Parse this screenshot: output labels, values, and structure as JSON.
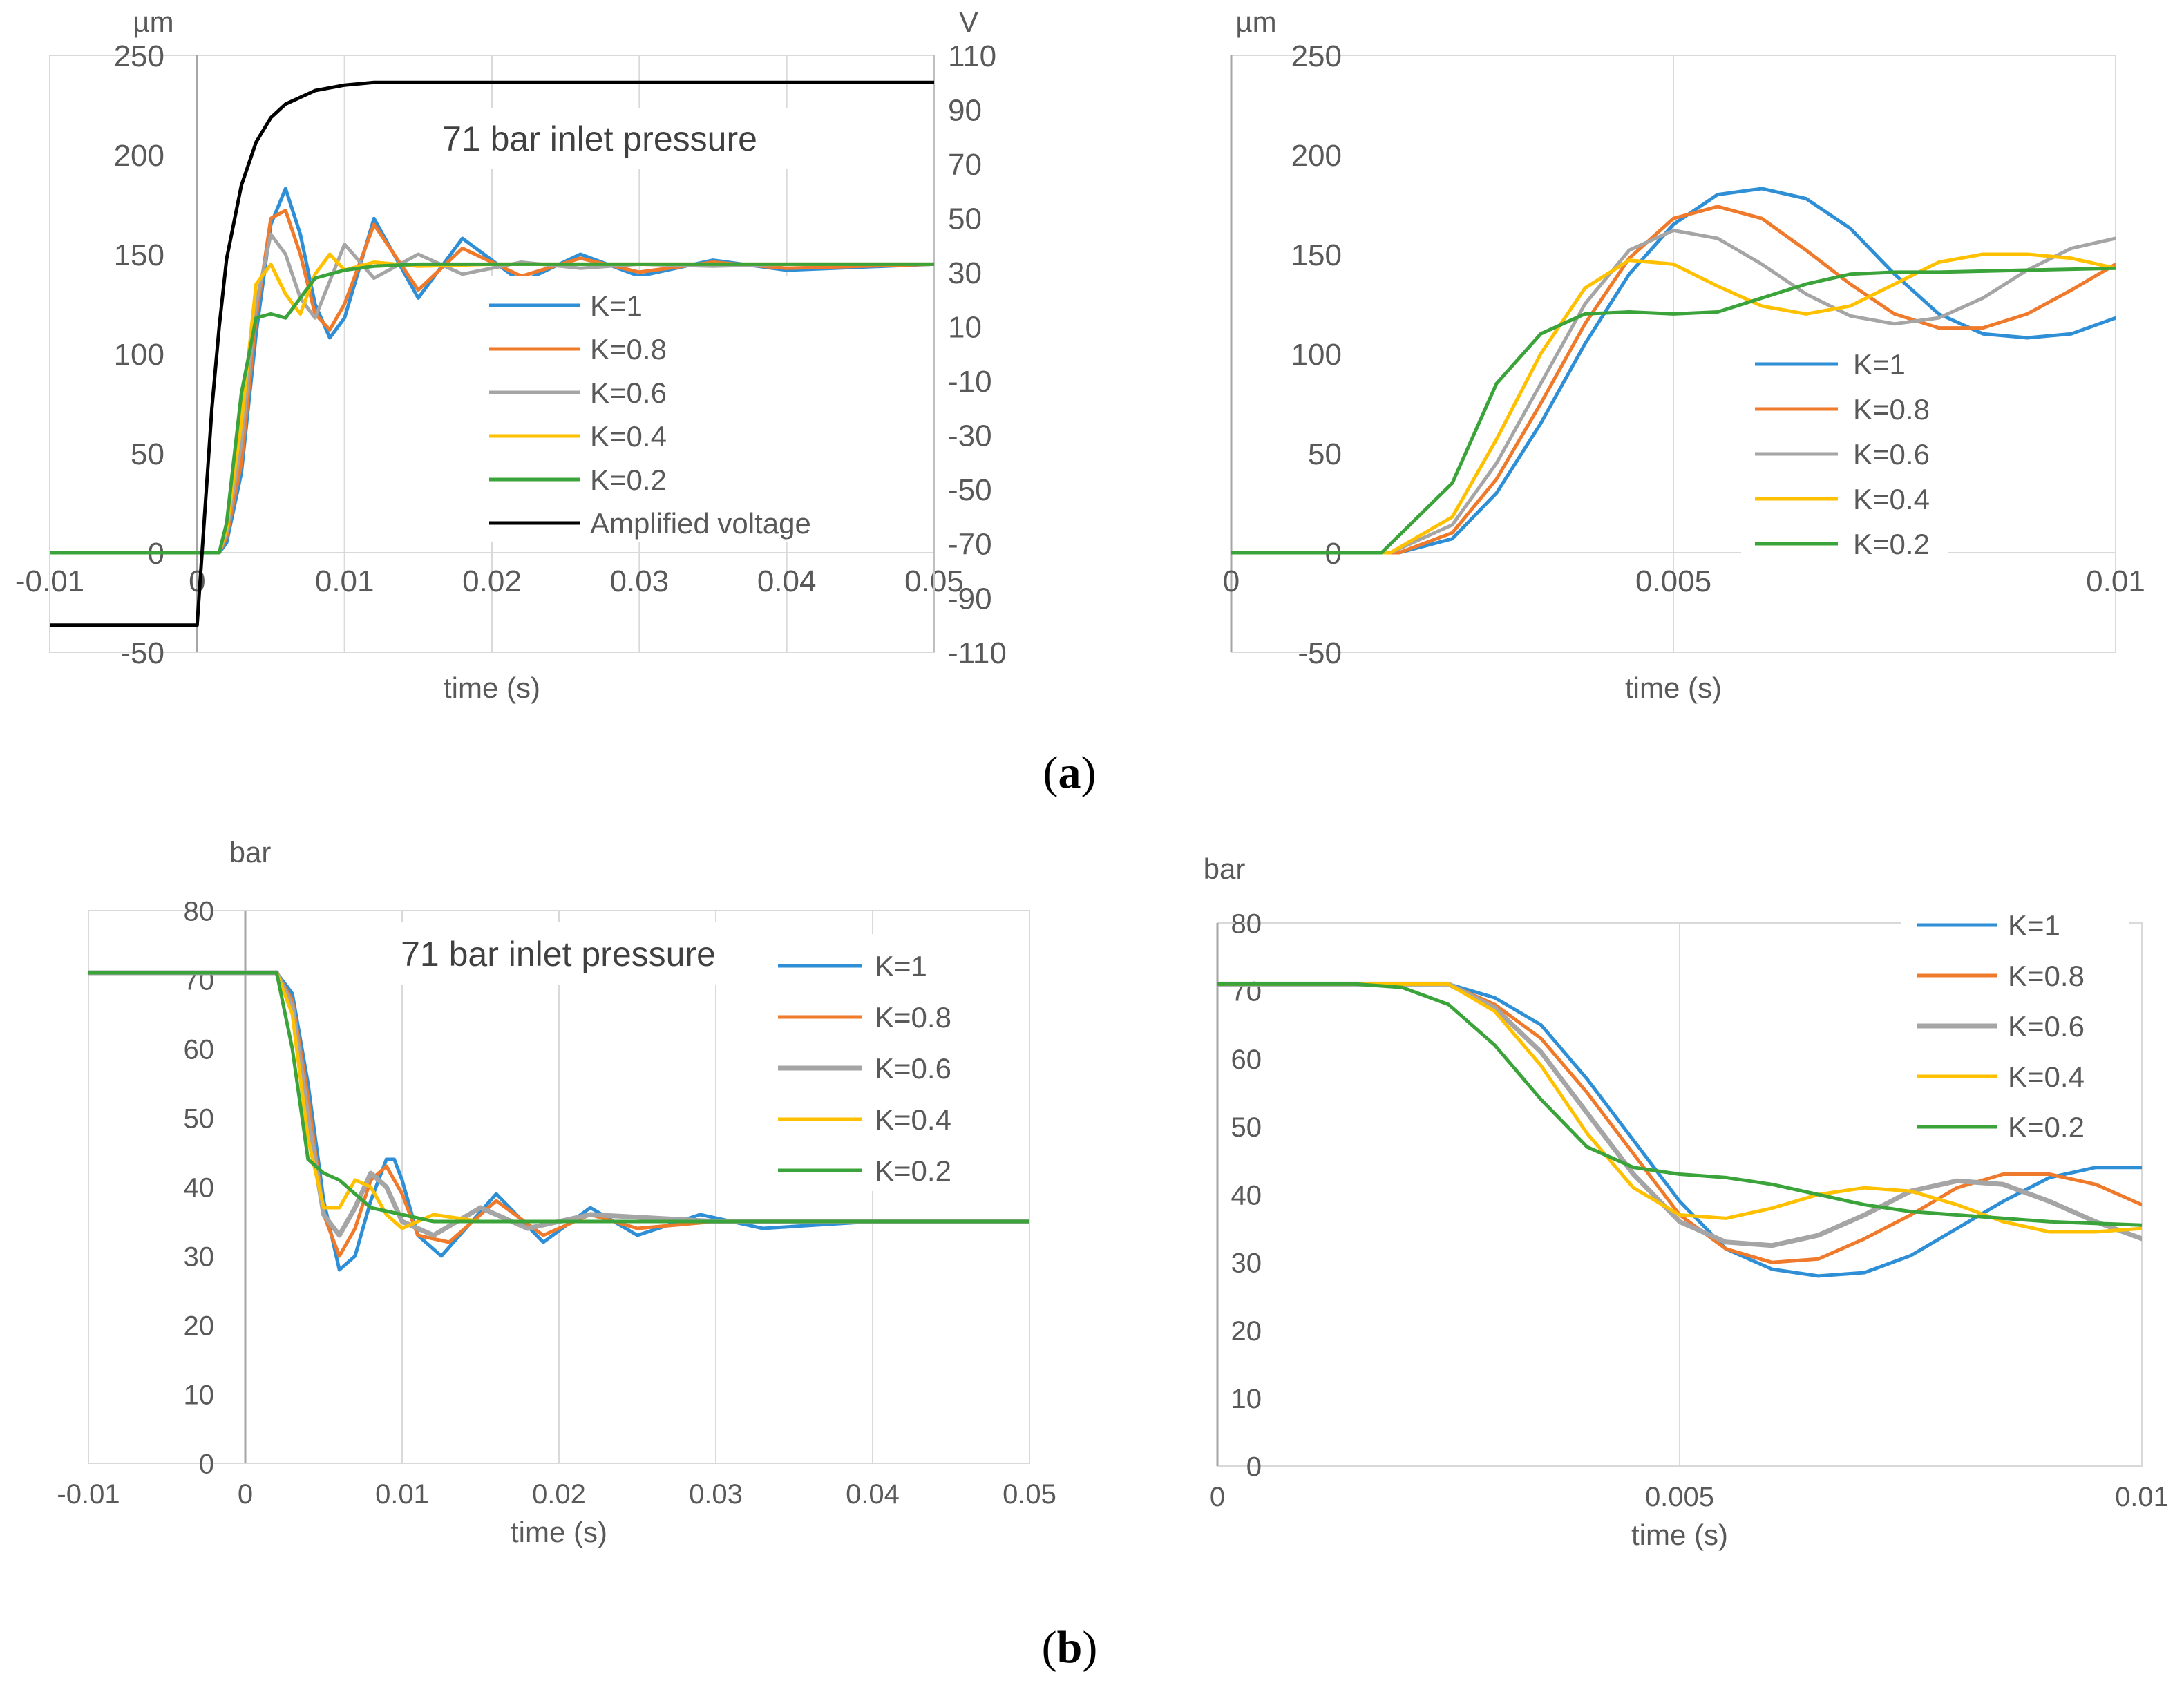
{
  "figure": {
    "caption_a": "a",
    "caption_b": "b"
  },
  "chart_data": [
    {
      "id": "a-left",
      "type": "line",
      "title": "71 bar inlet pressure",
      "xlabel": "time (s)",
      "ylabel": "µm",
      "y2label": "V",
      "xlim": [
        -0.01,
        0.05
      ],
      "ylim": [
        -50,
        250
      ],
      "y2lim": [
        -110,
        110
      ],
      "xticks": [
        "-0.01",
        "0",
        "0.01",
        "0.02",
        "0.03",
        "0.04",
        "0.05"
      ],
      "yticks": [
        "-50",
        "0",
        "50",
        "100",
        "150",
        "200",
        "250"
      ],
      "y2ticks": [
        "-110",
        "-90",
        "-70",
        "-50",
        "-30",
        "-10",
        "10",
        "30",
        "50",
        "70",
        "90",
        "110"
      ],
      "grid": "vertical",
      "legend": "center-right",
      "series": [
        {
          "name": "K=1",
          "color": "#2E8FD6",
          "axis": "left",
          "x": [
            -0.01,
            0,
            0.0015,
            0.002,
            0.003,
            0.004,
            0.005,
            0.006,
            0.007,
            0.008,
            0.009,
            0.01,
            0.012,
            0.015,
            0.018,
            0.022,
            0.026,
            0.03,
            0.035,
            0.04,
            0.05
          ],
          "y": [
            0,
            0,
            0,
            5,
            40,
            110,
            165,
            183,
            160,
            125,
            108,
            118,
            168,
            128,
            158,
            136,
            150,
            139,
            147,
            142,
            145
          ]
        },
        {
          "name": "K=0.8",
          "color": "#F07A2B",
          "axis": "left",
          "x": [
            -0.01,
            0,
            0.0015,
            0.002,
            0.003,
            0.004,
            0.005,
            0.006,
            0.007,
            0.008,
            0.009,
            0.01,
            0.012,
            0.015,
            0.018,
            0.022,
            0.026,
            0.03,
            0.035,
            0.04,
            0.05
          ],
          "y": [
            0,
            0,
            0,
            8,
            45,
            118,
            168,
            172,
            150,
            120,
            112,
            125,
            165,
            132,
            153,
            139,
            148,
            141,
            146,
            143,
            145
          ]
        },
        {
          "name": "K=0.6",
          "color": "#A5A5A5",
          "axis": "left",
          "x": [
            -0.01,
            0,
            0.0015,
            0.002,
            0.003,
            0.004,
            0.005,
            0.006,
            0.007,
            0.008,
            0.01,
            0.012,
            0.015,
            0.018,
            0.022,
            0.026,
            0.03,
            0.035,
            0.04,
            0.05
          ],
          "y": [
            0,
            0,
            0,
            10,
            55,
            125,
            160,
            150,
            128,
            118,
            155,
            138,
            150,
            140,
            146,
            143,
            145,
            144,
            145,
            145
          ]
        },
        {
          "name": "K=0.4",
          "color": "#FFC000",
          "axis": "left",
          "x": [
            -0.01,
            0,
            0.0015,
            0.002,
            0.003,
            0.004,
            0.005,
            0.006,
            0.007,
            0.008,
            0.009,
            0.01,
            0.012,
            0.015,
            0.02,
            0.03,
            0.05
          ],
          "y": [
            0,
            0,
            0,
            12,
            65,
            135,
            145,
            130,
            120,
            140,
            150,
            142,
            146,
            144,
            145,
            145,
            145
          ]
        },
        {
          "name": "K=0.2",
          "color": "#3AA33A",
          "axis": "left",
          "x": [
            -0.01,
            0,
            0.0015,
            0.002,
            0.003,
            0.004,
            0.005,
            0.006,
            0.007,
            0.008,
            0.009,
            0.01,
            0.012,
            0.015,
            0.02,
            0.03,
            0.05
          ],
          "y": [
            0,
            0,
            0,
            15,
            80,
            118,
            120,
            118,
            128,
            138,
            140,
            142,
            144,
            145,
            145,
            145,
            145
          ]
        },
        {
          "name": "Amplified voltage",
          "color": "#000000",
          "axis": "right",
          "x": [
            -0.01,
            -0.0001,
            0,
            0.0005,
            0.001,
            0.0015,
            0.002,
            0.003,
            0.004,
            0.005,
            0.006,
            0.008,
            0.01,
            0.012,
            0.015,
            0.02,
            0.05
          ],
          "y": [
            -100,
            -100,
            -100,
            -60,
            -20,
            10,
            35,
            62,
            78,
            87,
            92,
            97,
            99,
            100,
            100,
            100,
            100
          ]
        }
      ]
    },
    {
      "id": "a-right",
      "type": "line",
      "title": "",
      "xlabel": "time (s)",
      "ylabel": "µm",
      "xlim": [
        0,
        0.01
      ],
      "ylim": [
        -50,
        250
      ],
      "xticks": [
        "0",
        "0.005",
        "0.01"
      ],
      "yticks": [
        "-50",
        "0",
        "50",
        "100",
        "150",
        "200",
        "250"
      ],
      "grid": "vertical",
      "legend": "center-right",
      "series": [
        {
          "name": "K=1",
          "color": "#2E8FD6",
          "x": [
            0,
            0.001,
            0.0019,
            0.0025,
            0.003,
            0.0035,
            0.004,
            0.0045,
            0.005,
            0.0055,
            0.006,
            0.0065,
            0.007,
            0.0075,
            0.008,
            0.0085,
            0.009,
            0.0095,
            0.01
          ],
          "y": [
            0,
            0,
            0,
            7,
            30,
            65,
            105,
            140,
            165,
            180,
            183,
            178,
            163,
            140,
            120,
            110,
            108,
            110,
            118
          ]
        },
        {
          "name": "K=0.8",
          "color": "#F07A2B",
          "x": [
            0,
            0.001,
            0.0019,
            0.0025,
            0.003,
            0.0035,
            0.004,
            0.0045,
            0.005,
            0.0055,
            0.006,
            0.0065,
            0.007,
            0.0075,
            0.008,
            0.0085,
            0.009,
            0.0095,
            0.01
          ],
          "y": [
            0,
            0,
            0,
            10,
            37,
            75,
            115,
            148,
            168,
            174,
            168,
            152,
            135,
            120,
            113,
            113,
            120,
            132,
            145
          ]
        },
        {
          "name": "K=0.6",
          "color": "#A5A5A5",
          "x": [
            0,
            0.001,
            0.0018,
            0.0025,
            0.003,
            0.0035,
            0.004,
            0.0045,
            0.005,
            0.0055,
            0.006,
            0.0065,
            0.007,
            0.0075,
            0.008,
            0.0085,
            0.009,
            0.0095,
            0.01
          ],
          "y": [
            0,
            0,
            0,
            14,
            45,
            85,
            125,
            152,
            162,
            158,
            145,
            130,
            119,
            115,
            118,
            128,
            142,
            153,
            158
          ]
        },
        {
          "name": "K=0.4",
          "color": "#FFC000",
          "x": [
            0,
            0.001,
            0.0018,
            0.0025,
            0.003,
            0.0035,
            0.004,
            0.0045,
            0.005,
            0.0055,
            0.006,
            0.0065,
            0.007,
            0.0075,
            0.008,
            0.0085,
            0.009,
            0.0095,
            0.01
          ],
          "y": [
            0,
            0,
            0,
            18,
            57,
            100,
            133,
            147,
            145,
            134,
            124,
            120,
            124,
            135,
            146,
            150,
            150,
            148,
            143
          ]
        },
        {
          "name": "K=0.2",
          "color": "#3AA33A",
          "x": [
            0,
            0.001,
            0.0017,
            0.0025,
            0.003,
            0.0035,
            0.004,
            0.0045,
            0.005,
            0.0055,
            0.006,
            0.0065,
            0.007,
            0.0075,
            0.008,
            0.009,
            0.01
          ],
          "y": [
            0,
            0,
            0,
            35,
            85,
            110,
            120,
            121,
            120,
            121,
            128,
            135,
            140,
            141,
            141,
            142,
            143
          ]
        }
      ]
    },
    {
      "id": "b-left",
      "type": "line",
      "title": "71 bar inlet pressure",
      "xlabel": "time (s)",
      "ylabel": "bar",
      "xlim": [
        -0.01,
        0.05
      ],
      "ylim": [
        0,
        80
      ],
      "xticks": [
        "-0.01",
        "0",
        "0.01",
        "0.02",
        "0.03",
        "0.04",
        "0.05"
      ],
      "yticks": [
        "0",
        "10",
        "20",
        "30",
        "40",
        "50",
        "60",
        "70",
        "80"
      ],
      "grid": "vertical",
      "legend": "top-right",
      "series": [
        {
          "name": "K=1",
          "color": "#2E8FD6",
          "x": [
            -0.01,
            0,
            0.002,
            0.003,
            0.004,
            0.005,
            0.006,
            0.007,
            0.008,
            0.009,
            0.0095,
            0.01,
            0.011,
            0.0125,
            0.016,
            0.019,
            0.022,
            0.025,
            0.029,
            0.033,
            0.04,
            0.05
          ],
          "y": [
            71,
            71,
            71,
            68,
            55,
            38,
            28,
            30,
            38,
            44,
            44,
            41,
            33,
            30,
            39,
            32,
            37,
            33,
            36,
            34,
            35,
            35
          ]
        },
        {
          "name": "K=0.8",
          "color": "#F07A2B",
          "x": [
            -0.01,
            0,
            0.002,
            0.003,
            0.004,
            0.005,
            0.006,
            0.007,
            0.008,
            0.009,
            0.01,
            0.011,
            0.013,
            0.016,
            0.019,
            0.022,
            0.025,
            0.03,
            0.04,
            0.05
          ],
          "y": [
            71,
            71,
            71,
            67,
            53,
            36,
            30,
            34,
            41,
            43,
            39,
            33,
            32,
            38,
            33,
            36,
            34,
            35,
            35,
            35
          ]
        },
        {
          "name": "K=0.6",
          "color": "#A5A5A5",
          "x": [
            -0.01,
            0,
            0.002,
            0.003,
            0.004,
            0.005,
            0.006,
            0.007,
            0.008,
            0.009,
            0.01,
            0.012,
            0.015,
            0.018,
            0.022,
            0.03,
            0.05
          ],
          "y": [
            71,
            71,
            71,
            66,
            50,
            36,
            33,
            37,
            42,
            40,
            35,
            33,
            37,
            34,
            36,
            35,
            35
          ]
        },
        {
          "name": "K=0.4",
          "color": "#FFC000",
          "x": [
            -0.01,
            0,
            0.002,
            0.003,
            0.004,
            0.005,
            0.006,
            0.007,
            0.008,
            0.009,
            0.01,
            0.012,
            0.015,
            0.02,
            0.05
          ],
          "y": [
            71,
            71,
            71,
            65,
            47,
            37,
            37,
            41,
            40,
            36,
            34,
            36,
            35,
            35,
            35
          ]
        },
        {
          "name": "K=0.2",
          "color": "#3AA33A",
          "x": [
            -0.01,
            0,
            0.002,
            0.003,
            0.004,
            0.005,
            0.006,
            0.007,
            0.008,
            0.01,
            0.012,
            0.015,
            0.02,
            0.05
          ],
          "y": [
            71,
            71,
            71,
            60,
            44,
            42,
            41,
            39,
            37,
            36,
            35,
            35,
            35,
            35
          ]
        }
      ]
    },
    {
      "id": "b-right",
      "type": "line",
      "title": "",
      "xlabel": "time (s)",
      "ylabel": "bar",
      "xlim": [
        0,
        0.01
      ],
      "ylim": [
        0,
        80
      ],
      "xticks": [
        "0",
        "0.005",
        "0.01"
      ],
      "yticks": [
        "0",
        "10",
        "20",
        "30",
        "40",
        "50",
        "60",
        "70",
        "80"
      ],
      "grid": "vertical",
      "legend": "top-right",
      "series": [
        {
          "name": "K=1",
          "color": "#2E8FD6",
          "x": [
            0,
            0.002,
            0.0025,
            0.003,
            0.0035,
            0.004,
            0.0045,
            0.005,
            0.0055,
            0.006,
            0.0065,
            0.007,
            0.0075,
            0.008,
            0.0085,
            0.009,
            0.0095,
            0.01
          ],
          "y": [
            71,
            71,
            71,
            69,
            65,
            57,
            48,
            39,
            32,
            29,
            28,
            28.5,
            31,
            35,
            39,
            42.5,
            44,
            44
          ]
        },
        {
          "name": "K=0.8",
          "color": "#F07A2B",
          "x": [
            0,
            0.002,
            0.0025,
            0.003,
            0.0035,
            0.004,
            0.0045,
            0.005,
            0.0055,
            0.006,
            0.0065,
            0.007,
            0.0075,
            0.008,
            0.0085,
            0.009,
            0.0095,
            0.01
          ],
          "y": [
            71,
            71,
            71,
            68,
            63,
            55,
            46,
            37,
            32,
            30,
            30.5,
            33.5,
            37,
            41,
            43,
            43,
            41.5,
            38.5
          ]
        },
        {
          "name": "K=0.6",
          "color": "#A5A5A5",
          "x": [
            0,
            0.002,
            0.0025,
            0.003,
            0.0035,
            0.004,
            0.0045,
            0.005,
            0.0055,
            0.006,
            0.0065,
            0.007,
            0.0075,
            0.008,
            0.0085,
            0.009,
            0.0095,
            0.01
          ],
          "y": [
            71,
            71,
            71,
            67.5,
            61,
            52,
            43,
            36,
            33,
            32.5,
            34,
            37,
            40.5,
            42,
            41.5,
            39,
            36,
            33.5
          ]
        },
        {
          "name": "K=0.4",
          "color": "#FFC000",
          "x": [
            0,
            0.002,
            0.0025,
            0.003,
            0.0035,
            0.004,
            0.0045,
            0.005,
            0.0055,
            0.006,
            0.0065,
            0.007,
            0.0075,
            0.008,
            0.0085,
            0.009,
            0.0095,
            0.01
          ],
          "y": [
            71,
            71,
            71,
            67,
            59,
            49,
            41,
            37,
            36.5,
            38,
            40,
            41,
            40.5,
            38.5,
            36,
            34.5,
            34.5,
            35
          ]
        },
        {
          "name": "K=0.2",
          "color": "#3AA33A",
          "x": [
            0,
            0.0015,
            0.002,
            0.0025,
            0.003,
            0.0035,
            0.004,
            0.0045,
            0.005,
            0.0055,
            0.006,
            0.0065,
            0.007,
            0.0075,
            0.008,
            0.009,
            0.01
          ],
          "y": [
            71,
            71,
            70.5,
            68,
            62,
            54,
            47,
            44,
            43,
            42.5,
            41.5,
            40,
            38.5,
            37.5,
            37,
            36,
            35.5
          ]
        }
      ]
    }
  ]
}
